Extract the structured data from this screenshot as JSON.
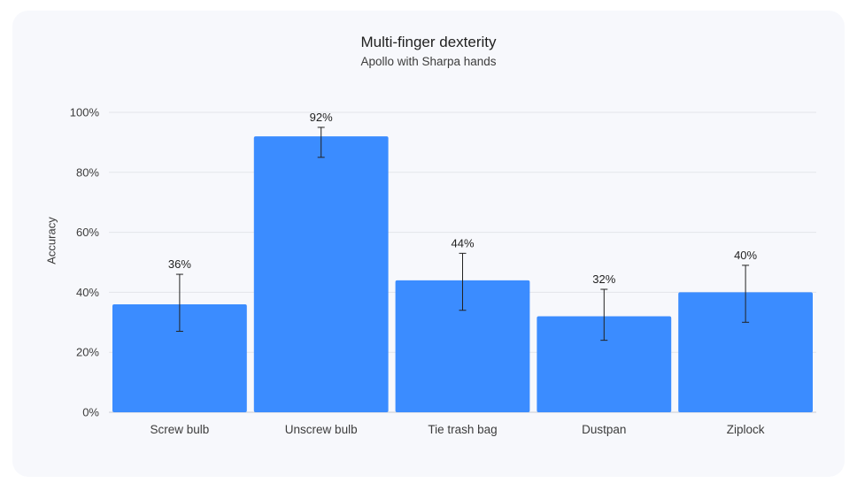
{
  "chart_data": {
    "type": "bar",
    "title": "Multi-finger dexterity",
    "subtitle": "Apollo with Sharpa hands",
    "xlabel": "",
    "ylabel": "Accuracy",
    "categories": [
      "Screw bulb",
      "Unscrew bulb",
      "Tie trash bag",
      "Dustpan",
      "Ziplock"
    ],
    "values": [
      36,
      92,
      44,
      32,
      40
    ],
    "value_labels": [
      "36%",
      "92%",
      "44%",
      "32%",
      "40%"
    ],
    "error_low": [
      27,
      85,
      34,
      24,
      30
    ],
    "error_high": [
      46,
      95,
      53,
      41,
      49
    ],
    "ylim": [
      0,
      100
    ],
    "yticks": [
      0,
      20,
      40,
      60,
      80,
      100
    ],
    "ytick_labels": [
      "0%",
      "20%",
      "40%",
      "60%",
      "80%",
      "100%"
    ],
    "grid": true,
    "legend": "none",
    "colors": {
      "bar": "#3b8cff",
      "grid": "#e3e5ea",
      "error": "#222222"
    }
  }
}
